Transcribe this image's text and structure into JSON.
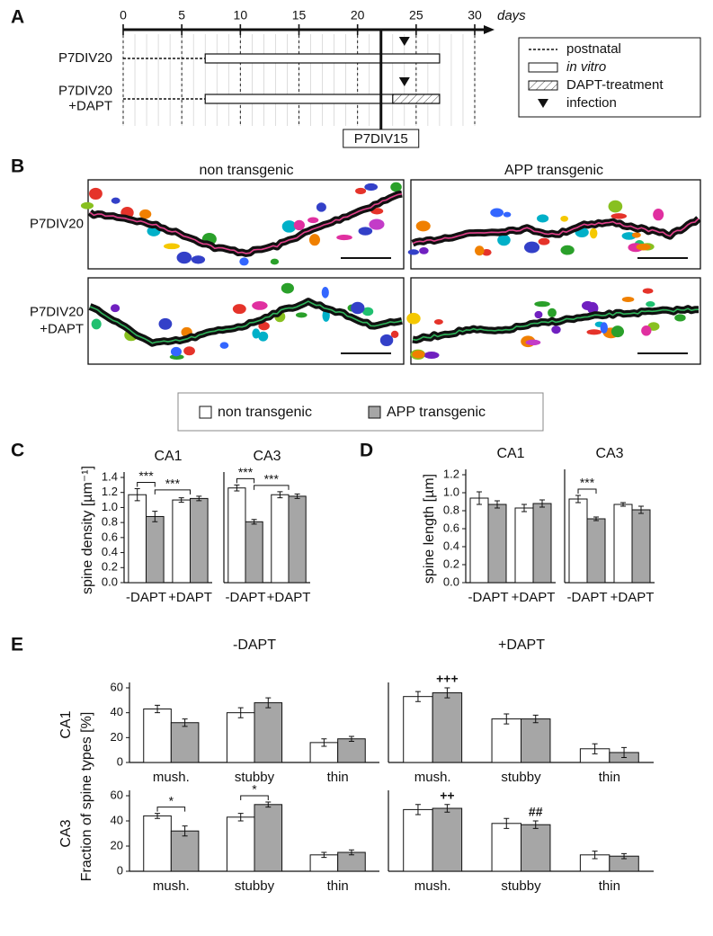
{
  "panel_labels": [
    "A",
    "B",
    "C",
    "D",
    "E"
  ],
  "timeline": {
    "xlim": [
      0,
      30
    ],
    "xticks": [
      0,
      5,
      10,
      15,
      20,
      25,
      30
    ],
    "unit": "days",
    "rows": [
      {
        "label": [
          "P7DIV20"
        ],
        "postnatal": [
          0,
          7
        ],
        "in_vitro": [
          7,
          27
        ],
        "infection": 24
      },
      {
        "label": [
          "P7DIV20",
          "+DAPT"
        ],
        "postnatal": [
          0,
          7
        ],
        "in_vitro": [
          7,
          27
        ],
        "dapt": [
          23,
          27
        ],
        "infection": 24
      }
    ],
    "marker": {
      "value": 22,
      "label": "P7DIV15"
    },
    "legend": [
      "postnatal",
      "in vitro",
      "DAPT-treatment",
      "infection"
    ]
  },
  "images": {
    "column_titles": [
      "non transgenic",
      "APP transgenic"
    ],
    "row_labels": [
      [
        "P7DIV20"
      ],
      [
        "P7DIV20",
        "+DAPT"
      ]
    ]
  },
  "legend": [
    {
      "name": "non transgenic",
      "color": "#ffffff"
    },
    {
      "name": "APP transgenic",
      "color": "#a6a6a6"
    }
  ],
  "panel_e": {
    "column_titles": [
      "-DAPT",
      "+DAPT"
    ],
    "row_labels": [
      "CA1",
      "CA3"
    ],
    "ylabel": "Fraction of spine types [%]"
  },
  "chart_data": [
    {
      "type": "bar",
      "title": "CA1",
      "ylabel": "spine density [µm⁻¹]",
      "categories": [
        "-DAPT",
        "+DAPT"
      ],
      "series": [
        {
          "color": "#ffffff",
          "values": [
            1.17,
            1.1
          ],
          "errors": [
            0.08,
            0.03
          ]
        },
        {
          "color": "#a6a6a6",
          "values": [
            0.88,
            1.12
          ],
          "errors": [
            0.07,
            0.03
          ]
        }
      ],
      "ylim": [
        0,
        1.4
      ],
      "yticks": [
        {
          "value": 0,
          "label": "0.0"
        },
        0.2,
        0.4,
        0.6,
        0.8,
        {
          "value": 1,
          "label": "1.0"
        },
        1.2,
        1.4
      ],
      "annotations": [
        "***",
        "***"
      ]
    },
    {
      "type": "bar",
      "title": "CA3",
      "categories": [
        "-DAPT",
        "+DAPT"
      ],
      "series": [
        {
          "color": "#ffffff",
          "values": [
            1.26,
            1.17
          ],
          "errors": [
            0.04,
            0.04
          ]
        },
        {
          "color": "#a6a6a6",
          "values": [
            0.81,
            1.15
          ],
          "errors": [
            0.03,
            0.03
          ]
        }
      ],
      "ylim": [
        0,
        1.4
      ],
      "annotations": [
        "***",
        "***"
      ]
    },
    {
      "type": "bar",
      "title": "CA1",
      "ylabel": "spine length [µm]",
      "categories": [
        "-DAPT",
        "+DAPT"
      ],
      "series": [
        {
          "color": "#ffffff",
          "values": [
            0.94,
            0.83
          ],
          "errors": [
            0.07,
            0.04
          ]
        },
        {
          "color": "#a6a6a6",
          "values": [
            0.87,
            0.88
          ],
          "errors": [
            0.04,
            0.04
          ]
        }
      ],
      "ylim": [
        0,
        1.2
      ],
      "yticks": [
        {
          "value": 0,
          "label": "0.0"
        },
        0.2,
        0.4,
        0.6,
        0.8,
        {
          "value": 1,
          "label": "1.0"
        },
        1.2
      ],
      "annotations": []
    },
    {
      "type": "bar",
      "title": "CA3",
      "categories": [
        "-DAPT",
        "+DAPT"
      ],
      "series": [
        {
          "color": "#ffffff",
          "values": [
            0.93,
            0.87
          ],
          "errors": [
            0.04,
            0.02
          ]
        },
        {
          "color": "#a6a6a6",
          "values": [
            0.71,
            0.81
          ],
          "errors": [
            0.02,
            0.04
          ]
        }
      ],
      "ylim": [
        0,
        1.2
      ],
      "annotations": [
        "***"
      ]
    },
    {
      "type": "bar",
      "categories": [
        "mush.",
        "stubby",
        "thin"
      ],
      "series": [
        {
          "color": "#ffffff",
          "values": [
            43,
            40,
            16
          ],
          "errors": [
            3,
            4,
            3
          ]
        },
        {
          "color": "#a6a6a6",
          "values": [
            32,
            48,
            19
          ],
          "errors": [
            3,
            4,
            2
          ]
        }
      ],
      "ylim": [
        0,
        60
      ],
      "yticks": [
        0,
        20,
        40,
        60
      ],
      "annotations": []
    },
    {
      "type": "bar",
      "categories": [
        "mush.",
        "stubby",
        "thin"
      ],
      "series": [
        {
          "color": "#ffffff",
          "values": [
            53,
            35,
            11
          ],
          "errors": [
            4,
            4,
            4
          ]
        },
        {
          "color": "#a6a6a6",
          "values": [
            56,
            35,
            8
          ],
          "errors": [
            4,
            3,
            4
          ]
        }
      ],
      "ylim": [
        0,
        60
      ],
      "annotations": [
        "+++"
      ]
    },
    {
      "type": "bar",
      "categories": [
        "mush.",
        "stubby",
        "thin"
      ],
      "series": [
        {
          "color": "#ffffff",
          "values": [
            44,
            43,
            13
          ],
          "errors": [
            2,
            3,
            2
          ]
        },
        {
          "color": "#a6a6a6",
          "values": [
            32,
            53,
            15
          ],
          "errors": [
            4,
            2,
            2
          ]
        }
      ],
      "ylim": [
        0,
        60
      ],
      "yticks": [
        0,
        20,
        40,
        60
      ],
      "annotations": [
        "*",
        "*"
      ]
    },
    {
      "type": "bar",
      "categories": [
        "mush.",
        "stubby",
        "thin"
      ],
      "series": [
        {
          "color": "#ffffff",
          "values": [
            49,
            38,
            13
          ],
          "errors": [
            4,
            4,
            3
          ]
        },
        {
          "color": "#a6a6a6",
          "values": [
            50,
            37,
            12
          ],
          "errors": [
            3,
            3,
            2
          ]
        }
      ],
      "ylim": [
        0,
        60
      ],
      "annotations": [
        "++",
        "##"
      ]
    }
  ]
}
